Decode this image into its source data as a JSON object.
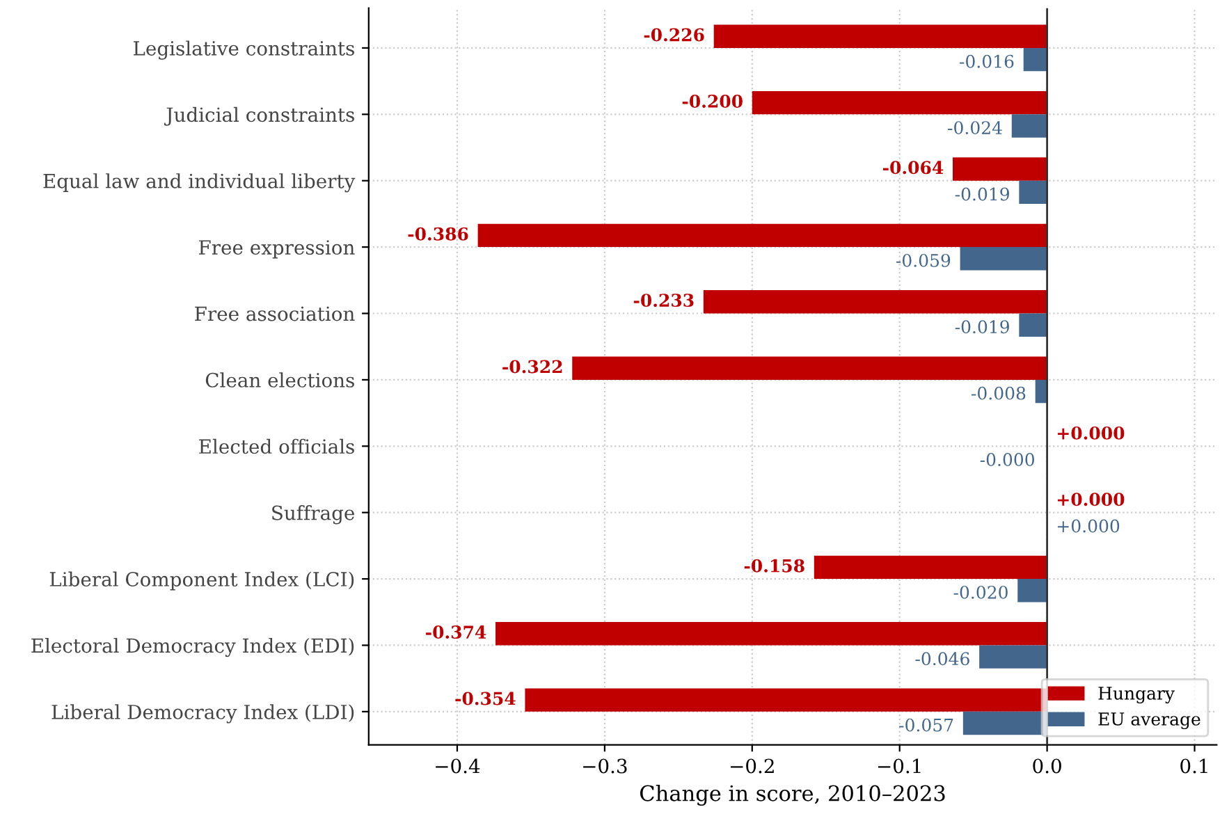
{
  "chart_data": {
    "type": "bar",
    "orientation": "horizontal",
    "xlabel": "Change in score, 2010–2023",
    "categories": [
      "Legislative constraints",
      "Judicial constraints",
      "Equal law and individual liberty",
      "Free expression",
      "Free association",
      "Clean elections",
      "Elected officials",
      "Suffrage",
      "Liberal Component Index (LCI)",
      "Electoral Democracy Index (EDI)",
      "Liberal Democracy Index (LDI)"
    ],
    "series": [
      {
        "name": "Hungary",
        "color": "#c00000",
        "values": [
          -0.226,
          -0.2,
          -0.064,
          -0.386,
          -0.233,
          -0.322,
          0.0,
          0.0,
          -0.158,
          -0.374,
          -0.354
        ],
        "value_labels": [
          "-0.226",
          "-0.200",
          "-0.064",
          "-0.386",
          "-0.233",
          "-0.322",
          "+0.000",
          "+0.000",
          "-0.158",
          "-0.374",
          "-0.354"
        ]
      },
      {
        "name": "EU average",
        "color": "#43668c",
        "values": [
          -0.016,
          -0.024,
          -0.019,
          -0.059,
          -0.019,
          -0.008,
          0.0,
          0.0,
          -0.02,
          -0.046,
          -0.057
        ],
        "value_labels": [
          "-0.016",
          "-0.024",
          "-0.019",
          "-0.059",
          "-0.019",
          "-0.008",
          "-0.000",
          "+0.000",
          "-0.020",
          "-0.046",
          "-0.057"
        ]
      }
    ],
    "xlim": [
      -0.46,
      0.115
    ],
    "xticks": [
      {
        "value": -0.4,
        "label": "−0.4"
      },
      {
        "value": -0.3,
        "label": "−0.3"
      },
      {
        "value": -0.2,
        "label": "−0.2"
      },
      {
        "value": -0.1,
        "label": "−0.1"
      },
      {
        "value": 0.0,
        "label": "0.0"
      },
      {
        "value": 0.1,
        "label": "0.1"
      }
    ],
    "ref_lines": [
      {
        "axis": "x",
        "value": 0.0,
        "color": "#333333"
      }
    ],
    "grid": true,
    "legend": "lower right"
  }
}
